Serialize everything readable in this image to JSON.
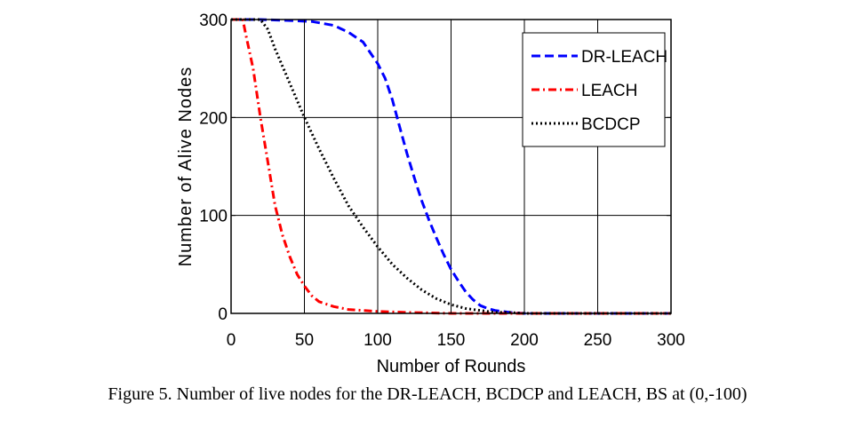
{
  "caption": "Figure 5. Number of live nodes for the DR-LEACH, BCDCP and LEACH, BS at (0,-100)",
  "chart_data": {
    "type": "line",
    "xlabel": "Number of Rounds",
    "ylabel": "Number of Alive Nodes",
    "xlim": [
      0,
      300
    ],
    "ylim": [
      0,
      300
    ],
    "xticks": [
      0,
      50,
      100,
      150,
      200,
      250,
      300
    ],
    "yticks": [
      0,
      100,
      200,
      300
    ],
    "grid": true,
    "legend_position": "top-right",
    "series": [
      {
        "name": "DR-LEACH",
        "color": "#0000ff",
        "style": "dashed",
        "x": [
          0,
          20,
          40,
          55,
          70,
          80,
          90,
          100,
          105,
          110,
          115,
          120,
          125,
          130,
          135,
          140,
          145,
          150,
          155,
          160,
          165,
          170,
          175,
          180,
          190,
          200,
          220,
          250,
          300
        ],
        "y": [
          300,
          300,
          299,
          298,
          294,
          287,
          277,
          255,
          240,
          218,
          190,
          163,
          138,
          115,
          95,
          77,
          60,
          45,
          33,
          22,
          14,
          8,
          5,
          3,
          1,
          0,
          0,
          0,
          0
        ]
      },
      {
        "name": "LEACH",
        "color": "#ff0000",
        "style": "dashdot",
        "x": [
          0,
          8,
          10,
          15,
          20,
          25,
          30,
          35,
          40,
          45,
          50,
          55,
          60,
          70,
          80,
          90,
          100,
          120,
          150,
          200,
          250,
          300
        ],
        "y": [
          300,
          300,
          285,
          250,
          200,
          155,
          110,
          80,
          58,
          40,
          28,
          18,
          12,
          7,
          4,
          3,
          2,
          1,
          0,
          0,
          0,
          0
        ]
      },
      {
        "name": "BCDCP",
        "color": "#000000",
        "style": "dotted",
        "x": [
          0,
          20,
          25,
          30,
          40,
          50,
          60,
          70,
          80,
          90,
          100,
          110,
          120,
          130,
          140,
          150,
          160,
          170,
          180,
          190,
          200,
          220,
          250,
          300
        ],
        "y": [
          300,
          300,
          290,
          270,
          235,
          200,
          168,
          138,
          110,
          88,
          68,
          50,
          36,
          24,
          15,
          9,
          5,
          3,
          1,
          1,
          0,
          0,
          0,
          0
        ]
      }
    ]
  }
}
